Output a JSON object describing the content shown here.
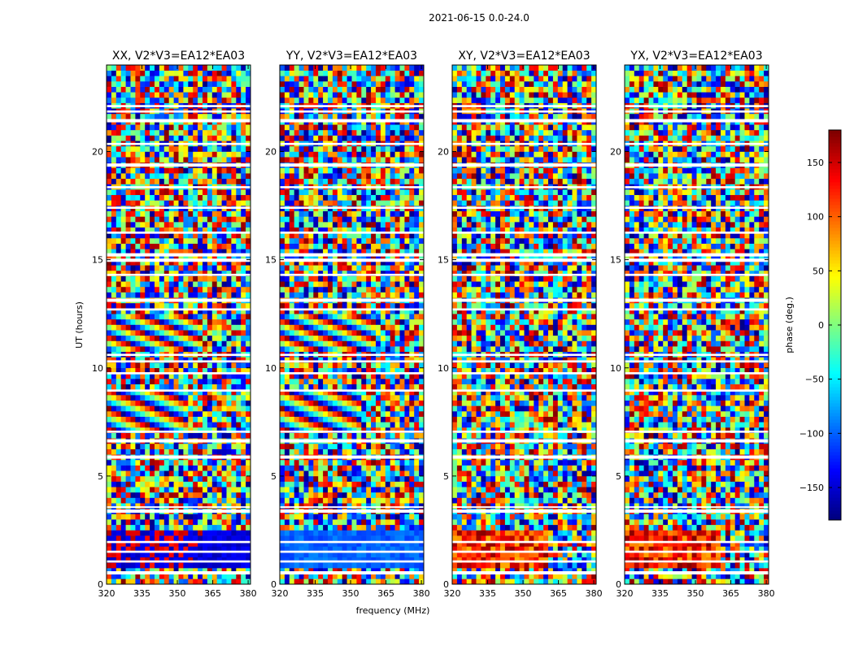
{
  "chart_data": {
    "type": "heatmap",
    "suptitle": "2021-06-15 0.0-24.0",
    "xlabel": "frequency (MHz)",
    "ylabel": "UT (hours)",
    "xlim": [
      320,
      381
    ],
    "ylim": [
      0,
      24
    ],
    "xticks": [
      320,
      335,
      350,
      365,
      380
    ],
    "yticks": [
      0,
      5,
      10,
      15,
      20
    ],
    "panels": [
      {
        "title": "XX, V2*V3=EA12*EA03",
        "polarization": "XX"
      },
      {
        "title": "YY, V2*V3=EA12*EA03",
        "polarization": "YY"
      },
      {
        "title": "XY, V2*V3=EA12*EA03",
        "polarization": "XY"
      },
      {
        "title": "YX, V2*V3=EA12*EA03",
        "polarization": "YX"
      }
    ],
    "colorbar": {
      "label": "phase (deg.)",
      "range": [
        -180,
        180
      ],
      "ticks": [
        -150,
        -100,
        -50,
        0,
        50,
        100,
        150
      ],
      "colormap": "jet"
    },
    "flagged_time_bands_hours": [
      [
        0.45,
        0.6
      ],
      [
        1.0,
        1.1
      ],
      [
        1.45,
        1.55
      ],
      [
        1.9,
        2.0
      ],
      [
        3.3,
        3.45
      ],
      [
        3.55,
        3.6
      ],
      [
        5.8,
        5.95
      ],
      [
        6.55,
        6.7
      ],
      [
        7.0,
        7.1
      ],
      [
        8.9,
        9.0
      ],
      [
        9.7,
        9.8
      ],
      [
        10.25,
        10.35
      ],
      [
        10.55,
        10.65
      ],
      [
        12.65,
        12.75
      ],
      [
        13.05,
        13.2
      ],
      [
        14.25,
        14.35
      ],
      [
        14.9,
        15.05
      ],
      [
        15.15,
        15.3
      ],
      [
        16.2,
        16.3
      ],
      [
        17.35,
        17.45
      ],
      [
        18.3,
        18.4
      ],
      [
        19.3,
        19.45
      ],
      [
        20.3,
        20.4
      ],
      [
        21.35,
        21.5
      ],
      [
        21.8,
        21.9
      ],
      [
        22.05,
        22.15
      ]
    ]
  }
}
